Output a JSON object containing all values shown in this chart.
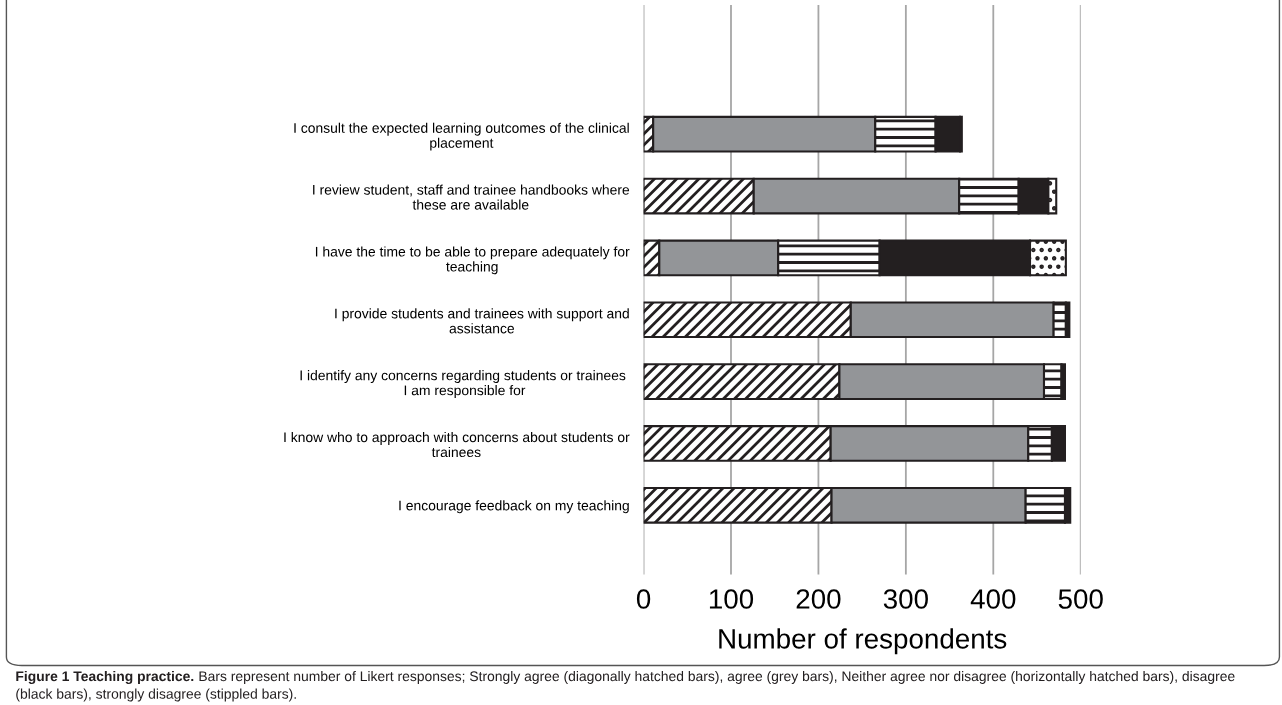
{
  "chart_data": {
    "type": "bar",
    "orientation": "horizontal",
    "stacked": true,
    "categories": [
      "I consult the expected learning outcomes of the clinical placement",
      "I review student, staff and trainee handbooks where these are available",
      "I have the time to be able to prepare adequately for teaching",
      "I provide students and trainees with support and assistance",
      "I identify any concerns regarding students or trainees  I am responsible for",
      "I know who to approach with concerns about students or trainees",
      "I encourage feedback on my teaching"
    ],
    "series": [
      {
        "color": "#231f20",
        "values": [
          11,
          126,
          18,
          237,
          224,
          214,
          215
        ]
      },
      {
        "color": "#939598",
        "values": [
          254,
          235,
          136,
          232,
          234,
          226,
          222
        ]
      },
      {
        "color": "#231f20",
        "values": [
          69,
          68,
          116,
          14,
          20,
          27,
          45
        ]
      },
      {
        "color": "#231f20",
        "values": [
          28,
          34,
          172,
          4,
          4,
          15,
          6
        ]
      },
      {
        "color": "#231f20",
        "values": [
          2,
          9,
          41,
          null,
          null,
          null,
          null
        ]
      }
    ],
    "xlim": [
      0,
      500
    ],
    "xticks": [
      0,
      100,
      200,
      300,
      400,
      500
    ],
    "xlabel": "Number of respondents",
    "grid": "x",
    "legend": false,
    "annotations": [
      "Figure 1 Teaching practice.",
      "Bars represent number of Likert responses; Strongly agree (diagonally hatched bars), agree (grey bars), Neither agree nor disagree (horizontally hatched bars), disagree (black bars), strongly disagree (stippled bars)."
    ]
  }
}
